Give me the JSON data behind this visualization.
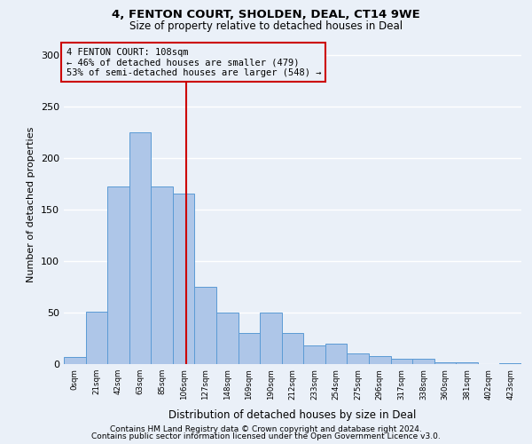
{
  "title1": "4, FENTON COURT, SHOLDEN, DEAL, CT14 9WE",
  "title2": "Size of property relative to detached houses in Deal",
  "xlabel": "Distribution of detached houses by size in Deal",
  "ylabel": "Number of detached properties",
  "footnote1": "Contains HM Land Registry data © Crown copyright and database right 2024.",
  "footnote2": "Contains public sector information licensed under the Open Government Licence v3.0.",
  "annotation_title": "4 FENTON COURT: 108sqm",
  "annotation_line1": "← 46% of detached houses are smaller (479)",
  "annotation_line2": "53% of semi-detached houses are larger (548) →",
  "bar_categories": [
    "0sqm",
    "21sqm",
    "42sqm",
    "63sqm",
    "85sqm",
    "106sqm",
    "127sqm",
    "148sqm",
    "169sqm",
    "190sqm",
    "212sqm",
    "233sqm",
    "254sqm",
    "275sqm",
    "296sqm",
    "317sqm",
    "338sqm",
    "360sqm",
    "381sqm",
    "402sqm",
    "423sqm"
  ],
  "bar_values": [
    7,
    51,
    172,
    225,
    172,
    165,
    75,
    50,
    30,
    50,
    30,
    18,
    20,
    10,
    8,
    5,
    5,
    2,
    2,
    0,
    1
  ],
  "bar_color": "#aec6e8",
  "bar_edge_color": "#5b9bd5",
  "vline_color": "#cc0000",
  "vline_x": 5.1,
  "bg_color": "#eaf0f8",
  "grid_color": "#ffffff",
  "annotation_box_color": "#cc0000",
  "ylim": [
    0,
    310
  ],
  "yticks": [
    0,
    50,
    100,
    150,
    200,
    250,
    300
  ]
}
